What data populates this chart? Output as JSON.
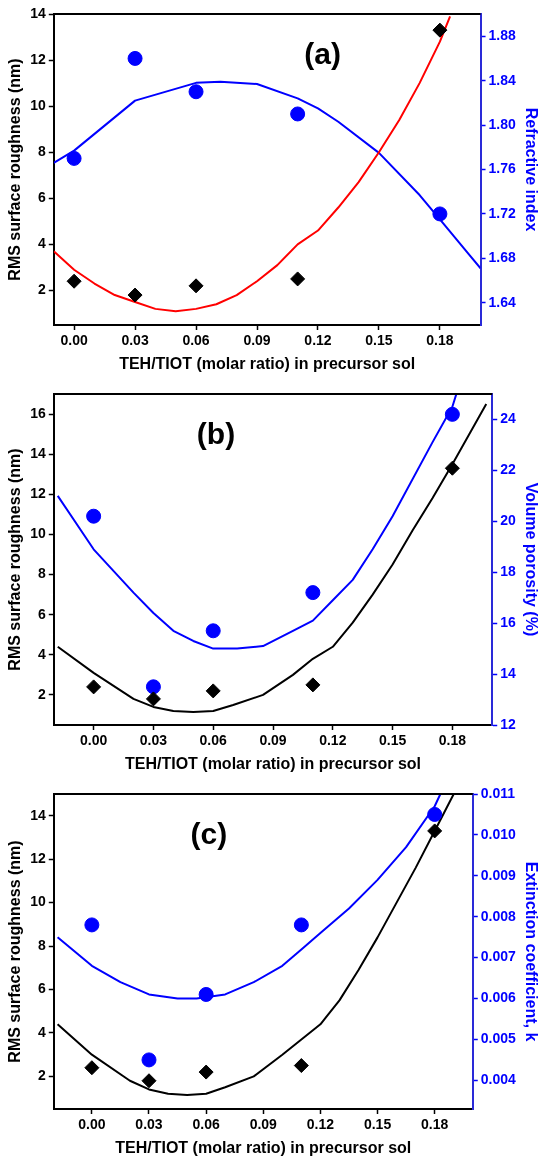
{
  "chart_data": [
    {
      "type": "scatter",
      "annotations": [
        "(a)"
      ],
      "xlabel": "TEH/TIOT (molar ratio) in precursor sol",
      "ylabel": "RMS surface roughness (nm)",
      "y2label": "Refractive index",
      "xlim": [
        -0.01,
        0.2
      ],
      "xticks": [
        {
          "value": 0,
          "label": "0.00"
        },
        {
          "value": 0.03,
          "label": "0.03"
        },
        {
          "value": 0.06,
          "label": "0.06"
        },
        {
          "value": 0.09,
          "label": "0.09"
        },
        {
          "value": 0.12,
          "label": "0.12"
        },
        {
          "value": 0.15,
          "label": "0.15"
        },
        {
          "value": 0.18,
          "label": "0.18"
        }
      ],
      "ylim": [
        0.5,
        14
      ],
      "yticks": [
        2,
        4,
        6,
        8,
        10,
        12,
        14
      ],
      "y2lim": [
        1.62,
        1.9
      ],
      "y2ticks": [
        1.64,
        1.68,
        1.72,
        1.76,
        {
          "value": 1.8,
          "label": "1.80"
        },
        1.84,
        1.88
      ],
      "grid": false,
      "legend": false,
      "series": [
        {
          "type": "line",
          "marker": "none",
          "color": "#ff0000",
          "x": [
            -0.01,
            0,
            0.01,
            0.02,
            0.03,
            0.04,
            0.05,
            0.06,
            0.07,
            0.08,
            0.09,
            0.1,
            0.11,
            0.12,
            0.13,
            0.14,
            0.15,
            0.16,
            0.17,
            0.18,
            0.185
          ],
          "values": [
            3.7,
            2.9,
            2.3,
            1.8,
            1.5,
            1.2,
            1.1,
            1.2,
            1.4,
            1.8,
            2.4,
            3.1,
            4.0,
            4.6,
            5.6,
            6.7,
            8.0,
            9.4,
            11.0,
            12.8,
            13.9
          ]
        },
        {
          "type": "line",
          "marker": "none",
          "color": "#0000ff",
          "axis": "y2",
          "x": [
            -0.01,
            0,
            0.03,
            0.06,
            0.072,
            0.09,
            0.11,
            0.12,
            0.13,
            0.15,
            0.17,
            0.18,
            0.2
          ],
          "values": [
            1.766,
            1.777,
            1.822,
            1.838,
            1.839,
            1.837,
            1.824,
            1.815,
            1.803,
            1.775,
            1.737,
            1.715,
            1.671
          ]
        },
        {
          "type": "scatter",
          "marker": "diamond",
          "color": "#000000",
          "x": [
            0,
            0.03,
            0.06,
            0.11,
            0.18
          ],
          "values": [
            2.4,
            1.8,
            2.2,
            2.5,
            13.3
          ]
        },
        {
          "type": "scatter",
          "marker": "circle",
          "color": "#0000ff",
          "axis": "y2",
          "x": [
            0,
            0.03,
            0.06,
            0.11,
            0.18
          ],
          "values": [
            1.77,
            1.86,
            1.83,
            1.81,
            1.72
          ]
        }
      ]
    },
    {
      "type": "scatter",
      "annotations": [
        "(b)"
      ],
      "xlabel": "TEH/TIOT (molar ratio) in precursor sol",
      "ylabel": "RMS surface roughness (nm)",
      "y2label": "Volume porosity (%)",
      "xlim": [
        -0.02,
        0.2
      ],
      "xticks": [
        {
          "value": 0,
          "label": "0.00"
        },
        {
          "value": 0.03,
          "label": "0.03"
        },
        {
          "value": 0.06,
          "label": "0.06"
        },
        {
          "value": 0.09,
          "label": "0.09"
        },
        {
          "value": 0.12,
          "label": "0.12"
        },
        {
          "value": 0.15,
          "label": "0.15"
        },
        {
          "value": 0.18,
          "label": "0.18"
        }
      ],
      "ylim": [
        0.5,
        17
      ],
      "yticks": [
        2,
        4,
        6,
        8,
        10,
        12,
        14,
        16
      ],
      "y2lim": [
        12,
        25
      ],
      "y2ticks": [
        12,
        14,
        16,
        18,
        20,
        22,
        24
      ],
      "grid": false,
      "legend": false,
      "series": [
        {
          "type": "line",
          "marker": "none",
          "color": "#000000",
          "x": [
            -0.018,
            0,
            0.02,
            0.03,
            0.04,
            0.05,
            0.06,
            0.07,
            0.085,
            0.1,
            0.11,
            0.12,
            0.13,
            0.14,
            0.15,
            0.16,
            0.17,
            0.18,
            0.197
          ],
          "values": [
            4.4,
            3.1,
            1.8,
            1.4,
            1.2,
            1.15,
            1.2,
            1.5,
            2.0,
            3.0,
            3.8,
            4.4,
            5.6,
            7.0,
            8.5,
            10.2,
            11.8,
            13.5,
            16.5
          ]
        },
        {
          "type": "line",
          "marker": "none",
          "color": "#0000ff",
          "axis": "y2",
          "x": [
            -0.018,
            0,
            0.02,
            0.03,
            0.04,
            0.05,
            0.06,
            0.072,
            0.085,
            0.1,
            0.11,
            0.12,
            0.13,
            0.14,
            0.15,
            0.17,
            0.18,
            0.182
          ],
          "values": [
            21.0,
            18.9,
            17.2,
            16.4,
            15.7,
            15.3,
            15.0,
            15.0,
            15.1,
            15.7,
            16.1,
            16.9,
            17.7,
            18.9,
            20.2,
            23.1,
            24.5,
            25.0
          ]
        },
        {
          "type": "scatter",
          "marker": "diamond",
          "color": "#000000",
          "x": [
            0,
            0.03,
            0.06,
            0.11,
            0.18
          ],
          "values": [
            2.4,
            1.8,
            2.2,
            2.5,
            13.3
          ]
        },
        {
          "type": "scatter",
          "marker": "circle",
          "color": "#0000ff",
          "axis": "y2",
          "x": [
            0,
            0.03,
            0.06,
            0.11,
            0.18
          ],
          "values": [
            20.2,
            13.5,
            15.7,
            17.2,
            24.2
          ]
        }
      ]
    },
    {
      "type": "scatter",
      "annotations": [
        "(c)"
      ],
      "xlabel": "TEH/TIOT (molar ratio) in precursor sol",
      "ylabel": "RMS surface roughness (nm)",
      "y2label": "Extinction coefficient, k",
      "xlim": [
        -0.02,
        0.2
      ],
      "xticks": [
        {
          "value": 0,
          "label": "0.00"
        },
        {
          "value": 0.03,
          "label": "0.03"
        },
        {
          "value": 0.06,
          "label": "0.06"
        },
        {
          "value": 0.09,
          "label": "0.09"
        },
        {
          "value": 0.12,
          "label": "0.12"
        },
        {
          "value": 0.15,
          "label": "0.15"
        },
        {
          "value": 0.18,
          "label": "0.18"
        }
      ],
      "ylim": [
        0.5,
        15
      ],
      "yticks": [
        2,
        4,
        6,
        8,
        10,
        12,
        14
      ],
      "y2lim": [
        0.0033,
        0.011
      ],
      "y2ticks": [
        0.004,
        0.005,
        0.006,
        0.007,
        0.008,
        0.009,
        {
          "value": 0.01,
          "label": "0.010"
        },
        0.011
      ],
      "grid": false,
      "legend": false,
      "series": [
        {
          "type": "line",
          "marker": "none",
          "color": "#000000",
          "x": [
            -0.018,
            0,
            0.02,
            0.03,
            0.04,
            0.05,
            0.06,
            0.07,
            0.085,
            0.1,
            0.11,
            0.12,
            0.13,
            0.14,
            0.15,
            0.16,
            0.17,
            0.18,
            0.19
          ],
          "values": [
            4.4,
            3.0,
            1.8,
            1.4,
            1.2,
            1.15,
            1.2,
            1.5,
            2.0,
            3.0,
            3.7,
            4.4,
            5.5,
            6.9,
            8.4,
            10.0,
            11.6,
            13.3,
            15.0
          ]
        },
        {
          "type": "line",
          "marker": "none",
          "color": "#0000ff",
          "axis": "y2",
          "x": [
            -0.018,
            0,
            0.015,
            0.03,
            0.045,
            0.055,
            0.07,
            0.085,
            0.1,
            0.11,
            0.12,
            0.135,
            0.15,
            0.165,
            0.18,
            0.183
          ],
          "values": [
            0.0075,
            0.0068,
            0.0064,
            0.0061,
            0.006,
            0.006,
            0.0061,
            0.0064,
            0.0068,
            0.0072,
            0.0076,
            0.0082,
            0.0089,
            0.0097,
            0.0107,
            0.011
          ]
        },
        {
          "type": "scatter",
          "marker": "diamond",
          "color": "#000000",
          "x": [
            0,
            0.03,
            0.06,
            0.11,
            0.18
          ],
          "values": [
            2.4,
            1.8,
            2.2,
            2.5,
            13.3
          ]
        },
        {
          "type": "scatter",
          "marker": "circle",
          "color": "#0000ff",
          "axis": "y2",
          "x": [
            0,
            0.03,
            0.06,
            0.11,
            0.18
          ],
          "values": [
            0.0078,
            0.0045,
            0.0061,
            0.0078,
            0.0105
          ]
        }
      ]
    }
  ]
}
